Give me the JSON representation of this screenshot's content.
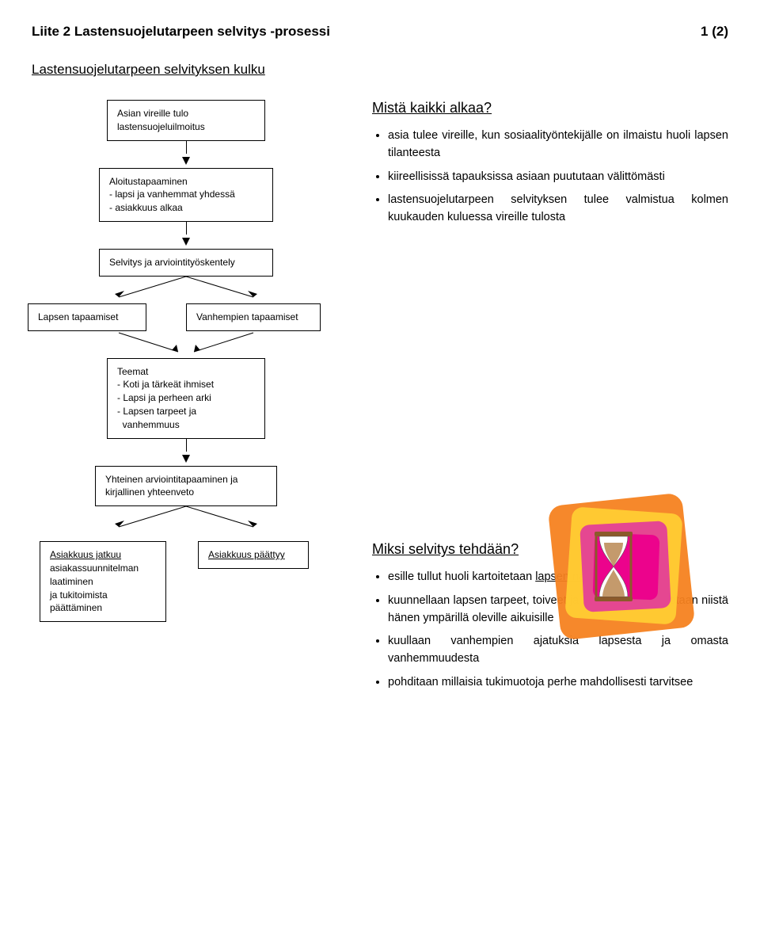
{
  "page": {
    "title": "Liite 2 Lastensuojelutarpeen selvitys -prosessi",
    "page_num": "1 (2)",
    "sub_title": "Lastensuojelutarpeen selvityksen kulku"
  },
  "flow": {
    "box1": "Asian vireille tulo\nlastensuojeluilmoitus",
    "box2_title": "Aloitustapaaminen",
    "box2_l1": "- lapsi ja vanhemmat yhdessä",
    "box2_l2": "- asiakkuus alkaa",
    "box3": "Selvitys ja arviointityöskentely",
    "box4": "Lapsen tapaamiset",
    "box5": "Vanhempien tapaamiset",
    "box6_title": "Teemat",
    "box6_l1": "- Koti ja tärkeät ihmiset",
    "box6_l2": "- Lapsi ja perheen arki",
    "box6_l3": "- Lapsen tarpeet ja",
    "box6_l4": "  vanhemmuus",
    "box7": "Yhteinen arviointitapaaminen ja kirjallinen yhteenveto",
    "box8_title": "Asiakkuus jatkuu",
    "box8_l1": "asiakassuunnitelman",
    "box8_l2": "laatiminen",
    "box8_l3": "ja tukitoimista",
    "box8_l4": "päättäminen",
    "box9": "Asiakkuus päättyy"
  },
  "info1": {
    "heading": "Mistä kaikki alkaa?",
    "b1": "asia tulee vireille, kun sosiaalityöntekijälle on ilmaistu huoli lapsen tilanteesta",
    "b2": "kiireellisissä tapauksissa asiaan puututaan välittömästi",
    "b3": "lastensuojelutarpeen selvityksen tulee valmistua kolmen kuukauden kuluessa vireille tulosta"
  },
  "info2": {
    "heading": "Miksi selvitys tehdään?",
    "b1_pre": "esille tullut huoli kartoitetaan ",
    "b1_u": "lapsen näkökulmasta",
    "b2": "kuunnellaan lapsen tarpeet, toiveet ja mielipiteet ja kerrotaan niistä hänen ympärillä oleville aikuisille",
    "b3": "kuullaan vanhempien ajatuksia lapsesta ja omasta vanhemmuudesta",
    "b4": "pohditaan millaisia tukimuotoja perhe mahdollisesti tarvitsee"
  },
  "hourglass": {
    "c_outer": "#f58220",
    "c_mid": "#ffcc33",
    "c_inner": "#e44097",
    "c_core": "#ec008c",
    "c_sand": "#c49a6c",
    "c_glass": "#ffffff",
    "c_frame": "#8b5a2b"
  }
}
